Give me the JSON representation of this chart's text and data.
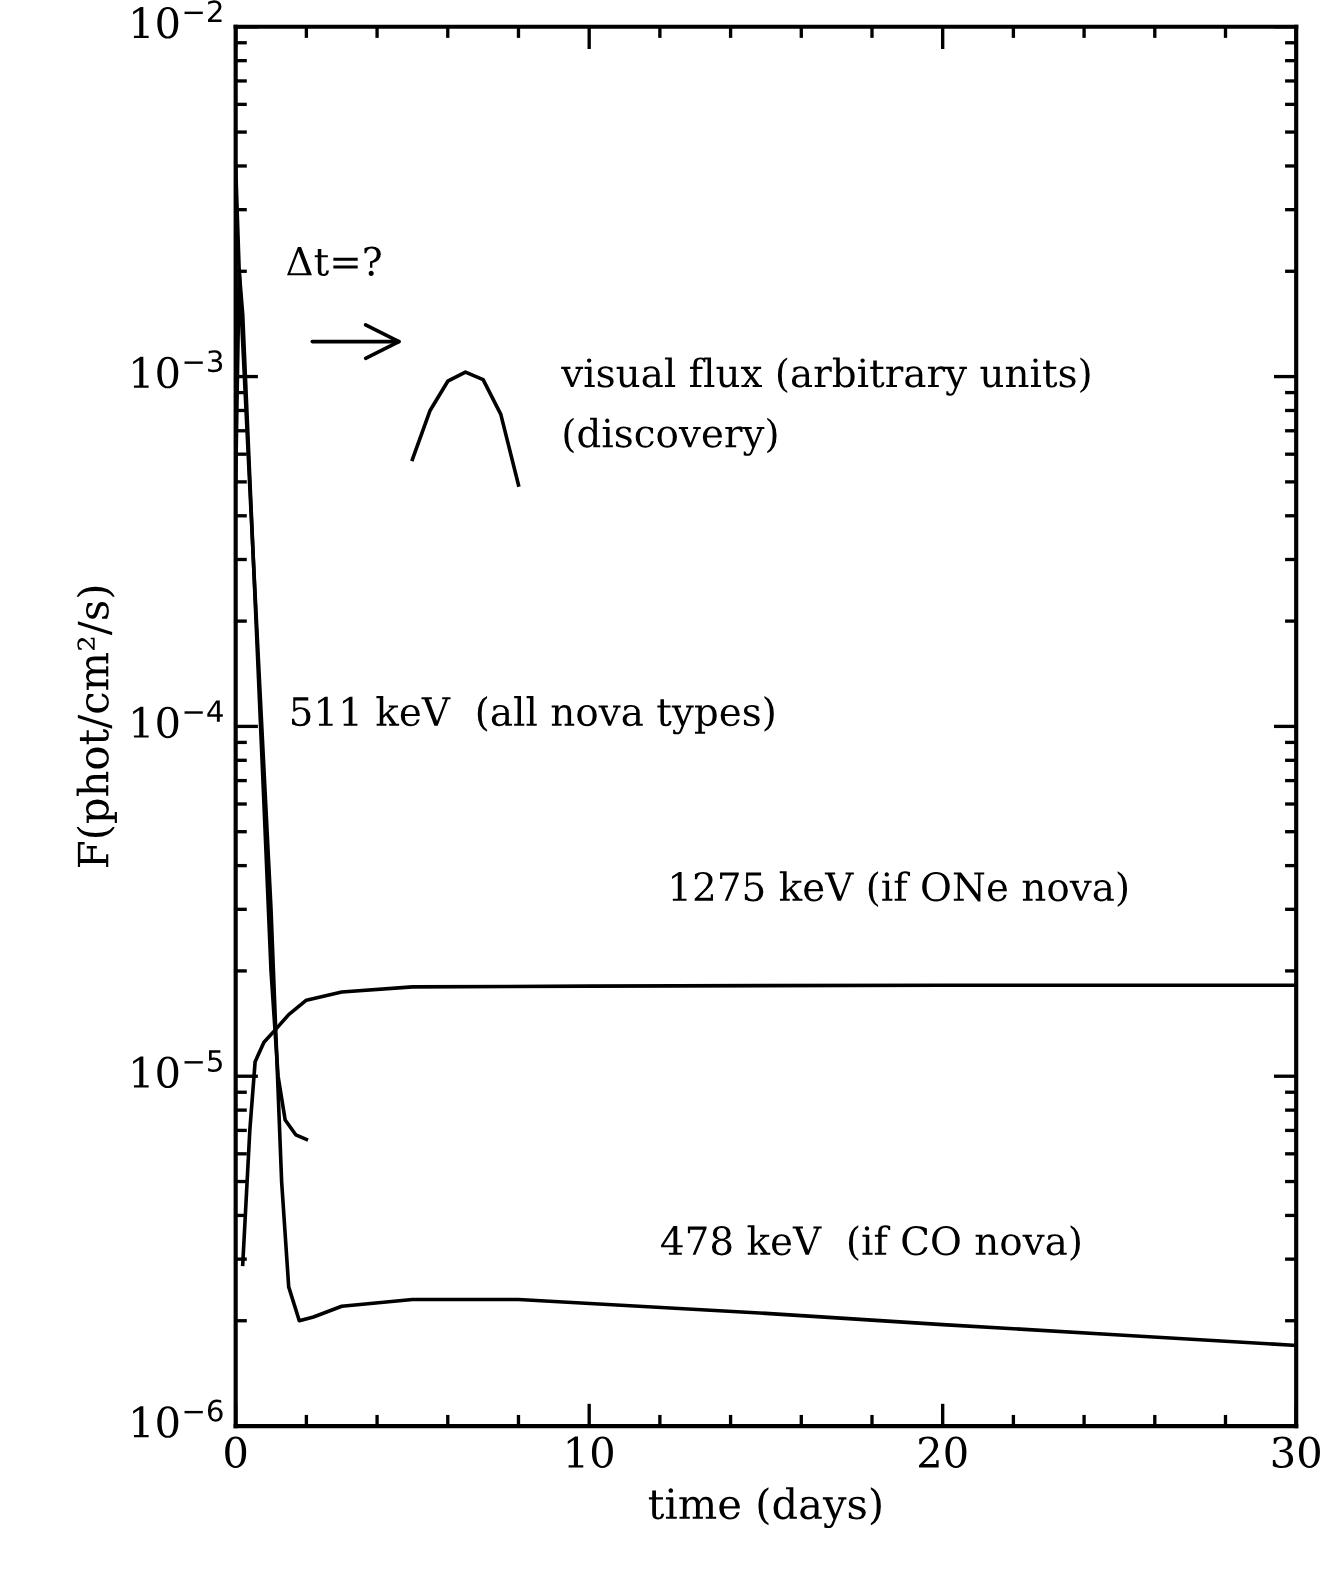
{
  "chart_data": {
    "type": "line",
    "xlabel": "time (days)",
    "ylabel": "F(phot/cm²/s)",
    "log": "y",
    "xlim": [
      0,
      30
    ],
    "xticks": [
      0,
      10,
      20,
      30
    ],
    "ylim": [
      1e-06,
      0.01
    ],
    "yticks": [
      {
        "value": 1e-06,
        "label": "10$^{−6}$"
      },
      {
        "value": 1e-05,
        "label": "10$^{−5}$"
      },
      {
        "value": 0.0001,
        "label": "10$^{−4}$"
      },
      {
        "value": 0.001,
        "label": "10$^{−3}$"
      },
      {
        "value": 0.01,
        "label": "10$^{−2}$"
      }
    ],
    "grid": false,
    "marker": "none",
    "line_style": "solid",
    "series": [
      {
        "color": "#000000",
        "x": [
          0,
          0.1,
          0.2,
          0.5,
          0.8,
          1.0,
          1.2,
          1.4,
          1.7,
          2.0
        ],
        "values": [
          0.0005,
          0.002,
          0.0015,
          0.0003,
          6e-05,
          2e-05,
          1e-05,
          7.5e-06,
          6.8e-06,
          6.6e-06
        ]
      },
      {
        "color": "#000000",
        "x": [
          0,
          0.1,
          0.5,
          1.0,
          1.3,
          1.5,
          1.8,
          2.2,
          3,
          5,
          8,
          15,
          20,
          25,
          30
        ],
        "values": [
          0.004,
          0.002,
          0.0003,
          3e-05,
          5e-06,
          2.5e-06,
          2e-06,
          2.05e-06,
          2.2e-06,
          2.3e-06,
          2.3e-06,
          2.1e-06,
          1.95e-06,
          1.82e-06,
          1.7e-06
        ]
      },
      {
        "color": "#000000",
        "x": [
          0.2,
          0.4,
          0.55,
          0.8,
          1.1,
          1.5,
          2,
          3,
          5,
          10,
          20,
          30
        ],
        "values": [
          2.9e-06,
          7e-06,
          1.1e-05,
          1.25e-05,
          1.35e-05,
          1.5e-05,
          1.65e-05,
          1.74e-05,
          1.8e-05,
          1.81e-05,
          1.82e-05,
          1.82e-05
        ]
      },
      {
        "color": "#000000",
        "x": [
          5.0,
          5.5,
          6.0,
          6.5,
          7.0,
          7.5,
          8.0
        ],
        "values": [
          0.00058,
          0.0008,
          0.00097,
          0.00103,
          0.00098,
          0.00078,
          0.00049
        ]
      }
    ],
    "annotations": [
      "Δt=?",
      "visual flux (arbitrary units)",
      "(discovery)",
      "511 keV  (all nova types)",
      "1275 keV (if ONe nova)",
      "478 keV  (if CO nova)"
    ]
  }
}
